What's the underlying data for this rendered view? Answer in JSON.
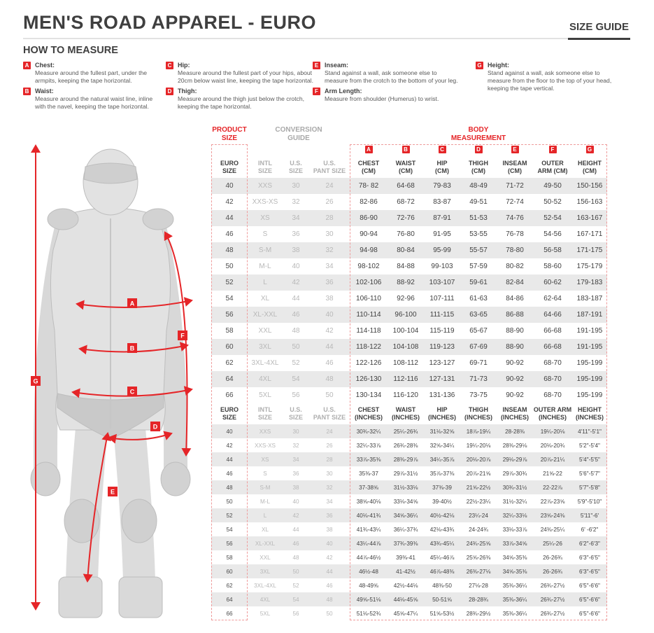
{
  "header": {
    "title": "MEN'S ROAD APPAREL - EURO",
    "tab": "SIZE GUIDE"
  },
  "how_to_measure": {
    "title": "HOW TO MEASURE",
    "items": [
      {
        "letter": "A",
        "name": "Chest:",
        "text": "Measure around the fullest part, under the armpits, keeping the tape horizontal."
      },
      {
        "letter": "B",
        "name": "Waist:",
        "text": "Measure around the natural waist line, inline with the navel, keeping the tape horizontal."
      },
      {
        "letter": "C",
        "name": "Hip:",
        "text": "Measure around the fullest part of your hips, about 20cm below waist line, keeping the tape horizontal."
      },
      {
        "letter": "D",
        "name": "Thigh:",
        "text": "Measure around the thigh just below the crotch, keeping the tape horizontal."
      },
      {
        "letter": "E",
        "name": "Inseam:",
        "text": "Stand against a wall, ask someone else to measure from the crotch to the bottom of your leg."
      },
      {
        "letter": "F",
        "name": "Arm Length:",
        "text": "Measure from shoulder (Humerus) to wrist."
      },
      {
        "letter": "G",
        "name": "Height:",
        "text": "Stand against a wall, ask someone else to measure from the floor to the top of your head, keeping the tape vertical."
      }
    ]
  },
  "figure": {
    "badges": [
      "A",
      "B",
      "C",
      "D",
      "E",
      "F",
      "G"
    ]
  },
  "table": {
    "group_headers": {
      "product_size": "PRODUCT\nSIZE",
      "conversion_guide": "CONVERSION\nGUIDE",
      "body_measurement": "BODY\nMEASUREMENT"
    },
    "letters": [
      "A",
      "B",
      "C",
      "D",
      "E",
      "F",
      "G"
    ],
    "cm_columns": [
      "EURO\nSIZE",
      "INTL\nSIZE",
      "U.S.\nSIZE",
      "U.S.\nPANT SIZE",
      "CHEST\n(CM)",
      "WAIST\n(CM)",
      "HIP\n(CM)",
      "THIGH\n(CM)",
      "INSEAM\n(CM)",
      "OUTER\nARM (CM)",
      "HEIGHT\n(CM)"
    ],
    "cm_rows": [
      [
        "40",
        "XXS",
        "30",
        "24",
        "78- 82",
        "64-68",
        "79-83",
        "48-49",
        "71-72",
        "49-50",
        "150-156"
      ],
      [
        "42",
        "XXS-XS",
        "32",
        "26",
        "82-86",
        "68-72",
        "83-87",
        "49-51",
        "72-74",
        "50-52",
        "156-163"
      ],
      [
        "44",
        "XS",
        "34",
        "28",
        "86-90",
        "72-76",
        "87-91",
        "51-53",
        "74-76",
        "52-54",
        "163-167"
      ],
      [
        "46",
        "S",
        "36",
        "30",
        "90-94",
        "76-80",
        "91-95",
        "53-55",
        "76-78",
        "54-56",
        "167-171"
      ],
      [
        "48",
        "S-M",
        "38",
        "32",
        "94-98",
        "80-84",
        "95-99",
        "55-57",
        "78-80",
        "56-58",
        "171-175"
      ],
      [
        "50",
        "M-L",
        "40",
        "34",
        "98-102",
        "84-88",
        "99-103",
        "57-59",
        "80-82",
        "58-60",
        "175-179"
      ],
      [
        "52",
        "L",
        "42",
        "36",
        "102-106",
        "88-92",
        "103-107",
        "59-61",
        "82-84",
        "60-62",
        "179-183"
      ],
      [
        "54",
        "XL",
        "44",
        "38",
        "106-110",
        "92-96",
        "107-111",
        "61-63",
        "84-86",
        "62-64",
        "183-187"
      ],
      [
        "56",
        "XL-XXL",
        "46",
        "40",
        "110-114",
        "96-100",
        "111-115",
        "63-65",
        "86-88",
        "64-66",
        "187-191"
      ],
      [
        "58",
        "XXL",
        "48",
        "42",
        "114-118",
        "100-104",
        "115-119",
        "65-67",
        "88-90",
        "66-68",
        "191-195"
      ],
      [
        "60",
        "3XL",
        "50",
        "44",
        "118-122",
        "104-108",
        "119-123",
        "67-69",
        "88-90",
        "66-68",
        "191-195"
      ],
      [
        "62",
        "3XL-4XL",
        "52",
        "46",
        "122-126",
        "108-112",
        "123-127",
        "69-71",
        "90-92",
        "68-70",
        "195-199"
      ],
      [
        "64",
        "4XL",
        "54",
        "48",
        "126-130",
        "112-116",
        "127-131",
        "71-73",
        "90-92",
        "68-70",
        "195-199"
      ],
      [
        "66",
        "5XL",
        "56",
        "50",
        "130-134",
        "116-120",
        "131-136",
        "73-75",
        "90-92",
        "68-70",
        "195-199"
      ]
    ],
    "in_columns": [
      "EURO\nSIZE",
      "INTL\nSIZE",
      "U.S.\nSIZE",
      "U.S.\nPANT SIZE",
      "CHEST\n(INCHES)",
      "WAIST\n(INCHES)",
      "HIP\n(INCHES)",
      "THIGH\n(INCHES)",
      "INSEAM\n(INCHES)",
      "OUTER ARM\n(INCHES)",
      "HEIGHT\n(INCHES)"
    ],
    "in_rows": [
      [
        "40",
        "XXS",
        "30",
        "24",
        "30¾-32¼",
        "25¼-26¾",
        "31⅛-32⅝",
        "18⅞-19¼",
        "28-28⅜",
        "19¼-20⅛",
        "4'11\"-5'1\""
      ],
      [
        "42",
        "XXS-XS",
        "32",
        "26",
        "32¼-33⅞",
        "26¾-28⅜",
        "32⅝-34¼",
        "19¼-20⅛",
        "28⅜-29⅛",
        "20⅛-20¾",
        "5'2\"-5'4\""
      ],
      [
        "44",
        "XS",
        "34",
        "28",
        "33⅞-35⅜",
        "28⅜-29⅞",
        "34¼-35⅞",
        "20⅛-20⅞",
        "29⅛-29⅞",
        "20⅞-21¼",
        "5'4\"-5'5\""
      ],
      [
        "46",
        "S",
        "36",
        "30",
        "35⅜-37",
        "29⅞-31½",
        "35⅞-37⅜",
        "20⅞-21⅝",
        "29⅞-30¾",
        "21⅝-22",
        "5'6\"-5'7\""
      ],
      [
        "48",
        "S-M",
        "38",
        "32",
        "37-38⅝",
        "31½-33⅛",
        "37⅜-39",
        "21⅝-22½",
        "30¾-31½",
        "22-22⅞",
        "5'7\"-5'8\""
      ],
      [
        "50",
        "M-L",
        "40",
        "34",
        "38⅝-40⅛",
        "33⅛-34⅝",
        "39-40½",
        "22½-23¼",
        "31½-32¼",
        "22⅞-23⅝",
        "5'9\"-5'10\""
      ],
      [
        "52",
        "L",
        "42",
        "36",
        "40⅛-41¾",
        "34⅝-36¼",
        "40½-42⅛",
        "23¼-24",
        "32¼-33⅛",
        "23⅝-24⅜",
        "5'11\"-6'"
      ],
      [
        "54",
        "XL",
        "44",
        "38",
        "41¾-43¼",
        "36¼-37¾",
        "42⅛-43¾",
        "24-24¾",
        "33⅛-33⅞",
        "24⅜-25¼",
        "6' -6'2\""
      ],
      [
        "56",
        "XL-XXL",
        "46",
        "40",
        "43¼-44⅞",
        "37¾-39⅜",
        "43¾-45¼",
        "24¾-25⅝",
        "33⅞-34⅝",
        "25¼-26",
        "6'2\"-6'3\""
      ],
      [
        "58",
        "XXL",
        "48",
        "42",
        "44⅞-46½",
        "39⅜-41",
        "45¼-46⅞",
        "25⅝-26⅜",
        "34⅝-35⅜",
        "26-26¾",
        "6'3\"-6'5\""
      ],
      [
        "60",
        "3XL",
        "50",
        "44",
        "46½-48",
        "41-42½",
        "46⅞-48⅜",
        "26⅜-27⅛",
        "34⅝-35⅜",
        "26-26¾",
        "6'3\"-6'5\""
      ],
      [
        "62",
        "3XL-4XL",
        "52",
        "46",
        "48-49⅝",
        "42½-44⅛",
        "48⅜-50",
        "27⅛-28",
        "35⅜-36¼",
        "26¾-27½",
        "6'5\"-6'6\""
      ],
      [
        "64",
        "4XL",
        "54",
        "48",
        "49⅝-51⅛",
        "44⅛-45⅝",
        "50-51⅝",
        "28-28¾",
        "35⅜-36¼",
        "26¾-27½",
        "6'5\"-6'6\""
      ],
      [
        "66",
        "5XL",
        "56",
        "50",
        "51⅛-52¾",
        "45⅝-47¼",
        "51⅝-53½",
        "28¾-29½",
        "35⅜-36¼",
        "26¾-27½",
        "6'5\"-6'6\""
      ]
    ]
  }
}
